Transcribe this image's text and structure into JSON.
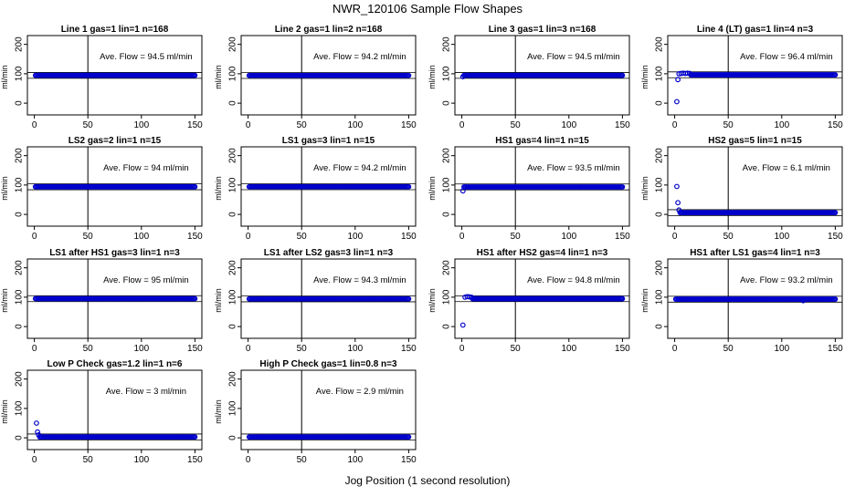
{
  "title": "NWR_120106  Sample Flow Shapes",
  "xlabel": "Jog Position (1 second resolution)",
  "colors": {
    "points": "#0000cc",
    "axis": "#000000"
  },
  "chart_data": [
    {
      "type": "scatter",
      "title": "Line 1 gas=1 lin=1 n=168",
      "ylabel": "ml/min",
      "annotation": "Ave. Flow = 94.5  ml/min",
      "xlim": [
        0,
        150
      ],
      "ylim": [
        0,
        200
      ],
      "xticks": [
        0,
        50,
        100,
        150
      ],
      "yticks": [
        0,
        100,
        200
      ],
      "vline": 50,
      "baseline": 94.5,
      "leading_points": [],
      "x_range": [
        1,
        150
      ]
    },
    {
      "type": "scatter",
      "title": "Line 2 gas=1 lin=2 n=168",
      "ylabel": "ml/min",
      "annotation": "Ave. Flow = 94.2  ml/min",
      "xlim": [
        0,
        150
      ],
      "ylim": [
        0,
        200
      ],
      "xticks": [
        0,
        50,
        100,
        150
      ],
      "yticks": [
        0,
        100,
        200
      ],
      "vline": 50,
      "baseline": 94.2,
      "leading_points": [],
      "x_range": [
        1,
        150
      ]
    },
    {
      "type": "scatter",
      "title": "Line 3 gas=1 lin=3 n=168",
      "ylabel": "ml/min",
      "annotation": "Ave. Flow = 94.5  ml/min",
      "xlim": [
        0,
        150
      ],
      "ylim": [
        0,
        200
      ],
      "xticks": [
        0,
        50,
        100,
        150
      ],
      "yticks": [
        0,
        100,
        200
      ],
      "vline": 50,
      "baseline": 94.5,
      "leading_points": [
        [
          1,
          90
        ]
      ],
      "x_range": [
        2,
        150
      ]
    },
    {
      "type": "scatter",
      "title": "Line 4 (LT) gas=1 lin=4 n=3",
      "ylabel": "ml/min",
      "annotation": "Ave. Flow = 96.4  ml/min",
      "xlim": [
        0,
        150
      ],
      "ylim": [
        0,
        200
      ],
      "xticks": [
        0,
        50,
        100,
        150
      ],
      "yticks": [
        0,
        100,
        200
      ],
      "vline": 50,
      "baseline": 96.4,
      "leading_points": [
        [
          2,
          5
        ],
        [
          3,
          80
        ],
        [
          4,
          100
        ],
        [
          6,
          101
        ],
        [
          8,
          102
        ],
        [
          10,
          101
        ],
        [
          12,
          102
        ],
        [
          14,
          101
        ]
      ],
      "x_range": [
        15,
        150
      ]
    },
    {
      "type": "scatter",
      "title": "LS2 gas=2 lin=1 n=15",
      "ylabel": "ml/min",
      "annotation": "Ave. Flow = 94  ml/min",
      "xlim": [
        0,
        150
      ],
      "ylim": [
        0,
        200
      ],
      "xticks": [
        0,
        50,
        100,
        150
      ],
      "yticks": [
        0,
        100,
        200
      ],
      "vline": 50,
      "baseline": 94.0,
      "leading_points": [],
      "x_range": [
        1,
        150
      ]
    },
    {
      "type": "scatter",
      "title": "LS1 gas=3 lin=1 n=15",
      "ylabel": "ml/min",
      "annotation": "Ave. Flow = 94.2  ml/min",
      "xlim": [
        0,
        150
      ],
      "ylim": [
        0,
        200
      ],
      "xticks": [
        0,
        50,
        100,
        150
      ],
      "yticks": [
        0,
        100,
        200
      ],
      "vline": 50,
      "baseline": 94.2,
      "leading_points": [],
      "x_range": [
        1,
        150
      ]
    },
    {
      "type": "scatter",
      "title": "HS1 gas=4 lin=1 n=15",
      "ylabel": "ml/min",
      "annotation": "Ave. Flow = 93.5  ml/min",
      "xlim": [
        0,
        150
      ],
      "ylim": [
        0,
        200
      ],
      "xticks": [
        0,
        50,
        100,
        150
      ],
      "yticks": [
        0,
        100,
        200
      ],
      "vline": 50,
      "baseline": 93.5,
      "leading_points": [
        [
          1,
          80
        ]
      ],
      "x_range": [
        2,
        150
      ]
    },
    {
      "type": "scatter",
      "title": "HS2 gas=5 lin=1 n=15",
      "ylabel": "ml/min",
      "annotation": "Ave. Flow = 6.1  ml/min",
      "xlim": [
        0,
        150
      ],
      "ylim": [
        0,
        200
      ],
      "xticks": [
        0,
        50,
        100,
        150
      ],
      "yticks": [
        0,
        100,
        200
      ],
      "vline": 50,
      "baseline": 6.1,
      "leading_points": [
        [
          2,
          95
        ],
        [
          3,
          40
        ],
        [
          4,
          15
        ]
      ],
      "x_range": [
        5,
        150
      ]
    },
    {
      "type": "scatter",
      "title": "LS1 after HS1 gas=3 lin=1 n=3",
      "ylabel": "ml/min",
      "annotation": "Ave. Flow = 95  ml/min",
      "xlim": [
        0,
        150
      ],
      "ylim": [
        0,
        200
      ],
      "xticks": [
        0,
        50,
        100,
        150
      ],
      "yticks": [
        0,
        100,
        200
      ],
      "vline": 50,
      "baseline": 95.0,
      "leading_points": [],
      "x_range": [
        1,
        150
      ]
    },
    {
      "type": "scatter",
      "title": "LS1 after LS2 gas=3 lin=1 n=3",
      "ylabel": "ml/min",
      "annotation": "Ave. Flow = 94.3  ml/min",
      "xlim": [
        0,
        150
      ],
      "ylim": [
        0,
        200
      ],
      "xticks": [
        0,
        50,
        100,
        150
      ],
      "yticks": [
        0,
        100,
        200
      ],
      "vline": 50,
      "baseline": 94.3,
      "leading_points": [],
      "x_range": [
        1,
        150
      ]
    },
    {
      "type": "scatter",
      "title": "HS1 after HS2 gas=4 lin=1 n=3",
      "ylabel": "ml/min",
      "annotation": "Ave. Flow = 94.8  ml/min",
      "xlim": [
        0,
        150
      ],
      "ylim": [
        0,
        200
      ],
      "xticks": [
        0,
        50,
        100,
        150
      ],
      "yticks": [
        0,
        100,
        200
      ],
      "vline": 50,
      "baseline": 94.8,
      "leading_points": [
        [
          1,
          5
        ],
        [
          3,
          100
        ],
        [
          5,
          102
        ],
        [
          7,
          101
        ],
        [
          9,
          100
        ]
      ],
      "x_range": [
        10,
        150
      ]
    },
    {
      "type": "scatter",
      "title": "HS1 after LS1 gas=4 lin=1 n=3",
      "ylabel": "ml/min",
      "annotation": "Ave. Flow = 93.2  ml/min",
      "xlim": [
        0,
        150
      ],
      "ylim": [
        0,
        200
      ],
      "xticks": [
        0,
        50,
        100,
        150
      ],
      "yticks": [
        0,
        100,
        200
      ],
      "vline": 50,
      "baseline": 93.2,
      "leading_points": [
        [
          120,
          88
        ]
      ],
      "x_range": [
        1,
        150
      ]
    },
    {
      "type": "scatter",
      "title": "Low P Check gas=1.2 lin=1 n=6",
      "ylabel": "ml/min",
      "annotation": "Ave. Flow = 3  ml/min",
      "xlim": [
        0,
        150
      ],
      "ylim": [
        0,
        200
      ],
      "xticks": [
        0,
        50,
        100,
        150
      ],
      "yticks": [
        0,
        100,
        200
      ],
      "vline": 50,
      "baseline": 3.0,
      "leading_points": [
        [
          2,
          50
        ],
        [
          3,
          20
        ],
        [
          4,
          10
        ]
      ],
      "x_range": [
        5,
        150
      ]
    },
    {
      "type": "scatter",
      "title": "High P Check gas=1 lin=0.8 n=3",
      "ylabel": "ml/min",
      "annotation": "Ave. Flow = 2.9  ml/min",
      "xlim": [
        0,
        150
      ],
      "ylim": [
        0,
        200
      ],
      "xticks": [
        0,
        50,
        100,
        150
      ],
      "yticks": [
        0,
        100,
        200
      ],
      "vline": 50,
      "baseline": 2.9,
      "leading_points": [],
      "x_range": [
        1,
        150
      ]
    }
  ]
}
